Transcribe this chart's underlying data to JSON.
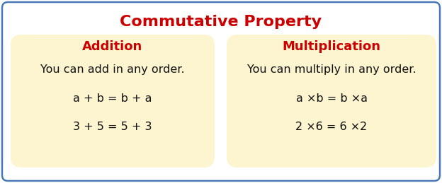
{
  "title": "Commutative Property",
  "title_color": "#cc0000",
  "title_fontsize": 16,
  "background_color": "#ffffff",
  "border_color": "#4a7ab5",
  "box_bg_color": "#fdf5d0",
  "left_box": {
    "heading": "Addition",
    "heading_color": "#cc0000",
    "heading_fontsize": 13,
    "lines": [
      "You can add in any order.",
      "a + b = b + a",
      "3 + 5 = 5 + 3"
    ],
    "line_fontsize": 11.5,
    "line_color": "#111111"
  },
  "right_box": {
    "heading": "Multiplication",
    "heading_color": "#cc0000",
    "heading_fontsize": 13,
    "lines": [
      "You can multiply in any order.",
      "a ×b = b ×a",
      "2 ×6 = 6 ×2"
    ],
    "line_fontsize": 11.5,
    "line_color": "#111111"
  },
  "fig_width": 6.24,
  "fig_height": 2.59,
  "dpi": 100
}
